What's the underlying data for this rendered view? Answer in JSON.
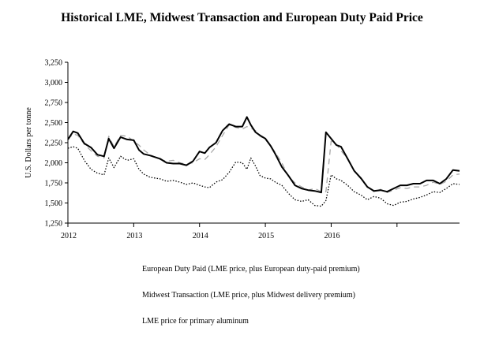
{
  "chart_data": {
    "type": "line",
    "title": "Historical LME, Midwest Transaction and European Duty Paid Price",
    "ylabel": "U.S. Dollars per tonne",
    "xlabel": "",
    "xlim": [
      2012.0,
      2017.95
    ],
    "ylim": [
      1250,
      3250
    ],
    "yticks": [
      1250,
      1500,
      1750,
      2000,
      2250,
      2500,
      2750,
      3000,
      3250
    ],
    "ytick_labels": [
      "1,250",
      "1,500",
      "1,750",
      "2,000",
      "2,250",
      "2,500",
      "2,750",
      "3,000",
      "3,250"
    ],
    "xticks": [
      2012,
      2013,
      2014,
      2015,
      2016,
      2017
    ],
    "xtick_labels": [
      "2012",
      "2013",
      "2014",
      "2015",
      "2016",
      ""
    ],
    "legend_position": "bottom",
    "series": [
      {
        "name": "European Duty Paid (LME price, plus European duty-paid premium)",
        "style": "dashed",
        "color": "#a8a8a8",
        "x": [
          2012.0,
          2012.08,
          2012.15,
          2012.25,
          2012.35,
          2012.45,
          2012.55,
          2012.62,
          2012.7,
          2012.8,
          2012.9,
          2013.0,
          2013.08,
          2013.15,
          2013.25,
          2013.4,
          2013.5,
          2013.6,
          2013.7,
          2013.8,
          2013.9,
          2014.0,
          2014.08,
          2014.15,
          2014.25,
          2014.35,
          2014.45,
          2014.55,
          2014.65,
          2014.72,
          2014.78,
          2014.85,
          2014.92,
          2015.0,
          2015.08,
          2015.15,
          2015.25,
          2015.35,
          2015.45,
          2015.55,
          2015.65,
          2015.75,
          2015.85,
          2015.92,
          2016.0,
          2016.08,
          2016.15,
          2016.25,
          2016.35,
          2016.45,
          2016.55,
          2016.65,
          2016.75,
          2016.85,
          2016.95,
          2017.05,
          2017.15,
          2017.25,
          2017.35,
          2017.45,
          2017.55,
          2017.65,
          2017.75,
          2017.85,
          2017.95
        ],
        "values": [
          2290,
          2360,
          2340,
          2230,
          2150,
          2080,
          2060,
          2330,
          2200,
          2340,
          2330,
          2270,
          2220,
          2160,
          2100,
          2040,
          2020,
          2030,
          2000,
          1980,
          2000,
          2050,
          2040,
          2100,
          2200,
          2340,
          2470,
          2440,
          2420,
          2450,
          2430,
          2400,
          2330,
          2290,
          2210,
          2130,
          2000,
          1830,
          1750,
          1700,
          1660,
          1680,
          1640,
          1640,
          2270,
          2230,
          2150,
          2050,
          1900,
          1800,
          1700,
          1640,
          1670,
          1630,
          1660,
          1690,
          1680,
          1700,
          1700,
          1720,
          1760,
          1730,
          1770,
          1850,
          1860
        ]
      },
      {
        "name": "Midwest Transaction (LME price, plus Midwest delivery premium)",
        "style": "solid",
        "color": "#000000",
        "x": [
          2012.0,
          2012.08,
          2012.15,
          2012.25,
          2012.35,
          2012.45,
          2012.55,
          2012.62,
          2012.7,
          2012.8,
          2012.9,
          2013.0,
          2013.08,
          2013.15,
          2013.25,
          2013.4,
          2013.5,
          2013.6,
          2013.7,
          2013.8,
          2013.9,
          2014.0,
          2014.08,
          2014.15,
          2014.25,
          2014.35,
          2014.45,
          2014.55,
          2014.65,
          2014.72,
          2014.78,
          2014.85,
          2014.92,
          2015.0,
          2015.08,
          2015.15,
          2015.25,
          2015.35,
          2015.45,
          2015.55,
          2015.65,
          2015.75,
          2015.85,
          2015.92,
          2016.0,
          2016.08,
          2016.15,
          2016.25,
          2016.35,
          2016.45,
          2016.55,
          2016.65,
          2016.75,
          2016.85,
          2016.95,
          2017.05,
          2017.15,
          2017.25,
          2017.35,
          2017.45,
          2017.55,
          2017.65,
          2017.75,
          2017.85,
          2017.95
        ],
        "values": [
          2290,
          2390,
          2370,
          2240,
          2190,
          2100,
          2080,
          2300,
          2180,
          2320,
          2290,
          2280,
          2160,
          2110,
          2090,
          2050,
          2000,
          1990,
          1990,
          1970,
          2020,
          2140,
          2120,
          2190,
          2250,
          2400,
          2480,
          2450,
          2450,
          2570,
          2470,
          2380,
          2340,
          2300,
          2210,
          2110,
          1950,
          1840,
          1720,
          1680,
          1660,
          1650,
          1630,
          2380,
          2300,
          2220,
          2200,
          2050,
          1900,
          1810,
          1700,
          1650,
          1660,
          1640,
          1680,
          1720,
          1720,
          1740,
          1740,
          1780,
          1780,
          1740,
          1800,
          1910,
          1900
        ]
      },
      {
        "name": "LME price for primary aluminum",
        "style": "dotted",
        "color": "#000000",
        "x": [
          2012.0,
          2012.08,
          2012.15,
          2012.25,
          2012.35,
          2012.45,
          2012.55,
          2012.62,
          2012.7,
          2012.8,
          2012.9,
          2013.0,
          2013.08,
          2013.15,
          2013.25,
          2013.4,
          2013.5,
          2013.6,
          2013.7,
          2013.8,
          2013.9,
          2014.0,
          2014.08,
          2014.15,
          2014.25,
          2014.35,
          2014.45,
          2014.55,
          2014.65,
          2014.72,
          2014.78,
          2014.85,
          2014.92,
          2015.0,
          2015.08,
          2015.15,
          2015.25,
          2015.35,
          2015.45,
          2015.55,
          2015.65,
          2015.75,
          2015.85,
          2015.92,
          2016.0,
          2016.08,
          2016.15,
          2016.25,
          2016.35,
          2016.45,
          2016.55,
          2016.65,
          2016.75,
          2016.85,
          2016.95,
          2017.05,
          2017.15,
          2017.25,
          2017.35,
          2017.45,
          2017.55,
          2017.65,
          2017.75,
          2017.85,
          2017.95
        ],
        "values": [
          2180,
          2200,
          2180,
          2030,
          1920,
          1870,
          1850,
          2060,
          1940,
          2080,
          2030,
          2050,
          1920,
          1860,
          1820,
          1800,
          1770,
          1780,
          1760,
          1730,
          1750,
          1720,
          1700,
          1690,
          1760,
          1790,
          1880,
          2010,
          2000,
          1920,
          2060,
          1960,
          1840,
          1810,
          1800,
          1760,
          1720,
          1620,
          1540,
          1520,
          1540,
          1470,
          1460,
          1530,
          1850,
          1800,
          1780,
          1720,
          1640,
          1600,
          1540,
          1580,
          1560,
          1490,
          1470,
          1510,
          1520,
          1550,
          1570,
          1600,
          1640,
          1630,
          1680,
          1740,
          1730
        ]
      }
    ]
  }
}
